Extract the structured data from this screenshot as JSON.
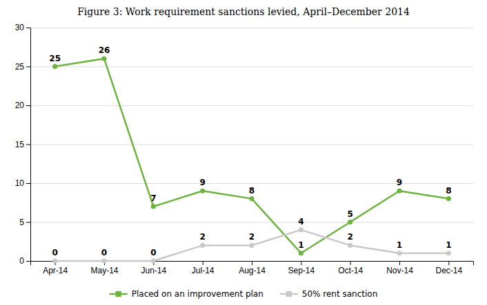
{
  "chart_data": {
    "type": "line",
    "title": "Figure 3: Work requirement sanctions levied, April–December 2014",
    "categories": [
      "Apr-14",
      "May-14",
      "Jun-14",
      "Jul-14",
      "Aug-14",
      "Sep-14",
      "Oct-14",
      "Nov-14",
      "Dec-14"
    ],
    "series": [
      {
        "name": "Placed on an improvement plan",
        "color": "#6db33f",
        "marker": "circle",
        "values": [
          25,
          26,
          7,
          9,
          8,
          1,
          5,
          9,
          8
        ]
      },
      {
        "name": "50% rent sanction",
        "color": "#c8c8c8",
        "marker": "circle",
        "values": [
          0,
          0,
          0,
          2,
          2,
          4,
          2,
          1,
          1
        ]
      }
    ],
    "ylim": [
      0,
      30
    ],
    "yticks": [
      0,
      5,
      10,
      15,
      20,
      25,
      30
    ],
    "grid": true,
    "data_labels": true,
    "legend": "bottom"
  }
}
